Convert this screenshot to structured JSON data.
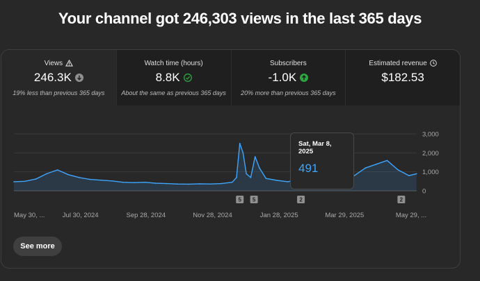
{
  "headline": "Your channel got 246,303 views in the last 365 days",
  "metrics": [
    {
      "label": "Views",
      "label_icon": "warning-icon",
      "value": "246.3K",
      "value_icon": "arrow-down-circle-icon",
      "sub": "19% less than previous 365 days"
    },
    {
      "label": "Watch time (hours)",
      "value": "8.8K",
      "value_icon": "check-circle-icon",
      "sub": "About the same as previous 365 days"
    },
    {
      "label": "Subscribers",
      "value": "-1.0K",
      "value_icon": "arrow-up-circle-icon",
      "sub": "20% more than previous 365 days"
    },
    {
      "label": "Estimated revenue",
      "label_icon": "clock-icon",
      "value": "$182.53"
    }
  ],
  "tooltip": {
    "date": "Sat, Mar 8, 2025",
    "value": "491"
  },
  "see_more_label": "See more",
  "colors": {
    "line": "#3ea6ff",
    "accent_green": "#2ba640",
    "background": "#282828"
  },
  "chart_data": {
    "type": "area",
    "title": "",
    "xlabel": "",
    "ylabel": "",
    "ylim": [
      0,
      3000
    ],
    "yticks": [
      "3,000",
      "2,000",
      "1,000",
      "0"
    ],
    "ytick_values": [
      3000,
      2000,
      1000,
      0
    ],
    "xticks": [
      "May 30, ...",
      "Jul 30, 2024",
      "Sep 28, 2024",
      "Nov 28, 2024",
      "Jan 28, 2025",
      "Mar 29, 2025",
      "May 29, ..."
    ],
    "xtick_dates": [
      "2024-05-30",
      "2024-07-30",
      "2024-09-28",
      "2024-11-28",
      "2025-01-28",
      "2025-03-29",
      "2025-05-29"
    ],
    "grid": true,
    "series": [
      {
        "values": [
          {
            "x": "2024-05-30",
            "y": 480
          },
          {
            "x": "2024-06-09",
            "y": 500
          },
          {
            "x": "2024-06-19",
            "y": 620
          },
          {
            "x": "2024-06-29",
            "y": 900
          },
          {
            "x": "2024-07-09",
            "y": 1100
          },
          {
            "x": "2024-07-19",
            "y": 850
          },
          {
            "x": "2024-07-29",
            "y": 700
          },
          {
            "x": "2024-08-08",
            "y": 600
          },
          {
            "x": "2024-08-18",
            "y": 560
          },
          {
            "x": "2024-08-28",
            "y": 520
          },
          {
            "x": "2024-09-07",
            "y": 450
          },
          {
            "x": "2024-09-17",
            "y": 430
          },
          {
            "x": "2024-09-27",
            "y": 450
          },
          {
            "x": "2024-10-07",
            "y": 400
          },
          {
            "x": "2024-10-17",
            "y": 380
          },
          {
            "x": "2024-10-27",
            "y": 360
          },
          {
            "x": "2024-11-06",
            "y": 350
          },
          {
            "x": "2024-11-16",
            "y": 370
          },
          {
            "x": "2024-11-26",
            "y": 360
          },
          {
            "x": "2024-12-06",
            "y": 380
          },
          {
            "x": "2024-12-16",
            "y": 450
          },
          {
            "x": "2024-12-20",
            "y": 700
          },
          {
            "x": "2024-12-23",
            "y": 2500
          },
          {
            "x": "2024-12-26",
            "y": 2000
          },
          {
            "x": "2024-12-29",
            "y": 900
          },
          {
            "x": "2025-01-02",
            "y": 700
          },
          {
            "x": "2025-01-06",
            "y": 1800
          },
          {
            "x": "2025-01-10",
            "y": 1200
          },
          {
            "x": "2025-01-16",
            "y": 650
          },
          {
            "x": "2025-01-26",
            "y": 550
          },
          {
            "x": "2025-02-05",
            "y": 480
          },
          {
            "x": "2025-02-15",
            "y": 600
          },
          {
            "x": "2025-02-25",
            "y": 700
          },
          {
            "x": "2025-03-08",
            "y": 491
          },
          {
            "x": "2025-03-18",
            "y": 420
          },
          {
            "x": "2025-03-28",
            "y": 480
          },
          {
            "x": "2025-04-07",
            "y": 800
          },
          {
            "x": "2025-04-17",
            "y": 1200
          },
          {
            "x": "2025-04-27",
            "y": 1400
          },
          {
            "x": "2025-05-07",
            "y": 1600
          },
          {
            "x": "2025-05-17",
            "y": 1100
          },
          {
            "x": "2025-05-27",
            "y": 800
          },
          {
            "x": "2025-06-03",
            "y": 900
          }
        ]
      }
    ],
    "annotations": [
      {
        "x": "2024-12-23",
        "label": "5"
      },
      {
        "x": "2025-01-05",
        "label": "5"
      },
      {
        "x": "2025-02-17",
        "label": "2"
      },
      {
        "x": "2025-05-20",
        "label": "2"
      }
    ]
  }
}
